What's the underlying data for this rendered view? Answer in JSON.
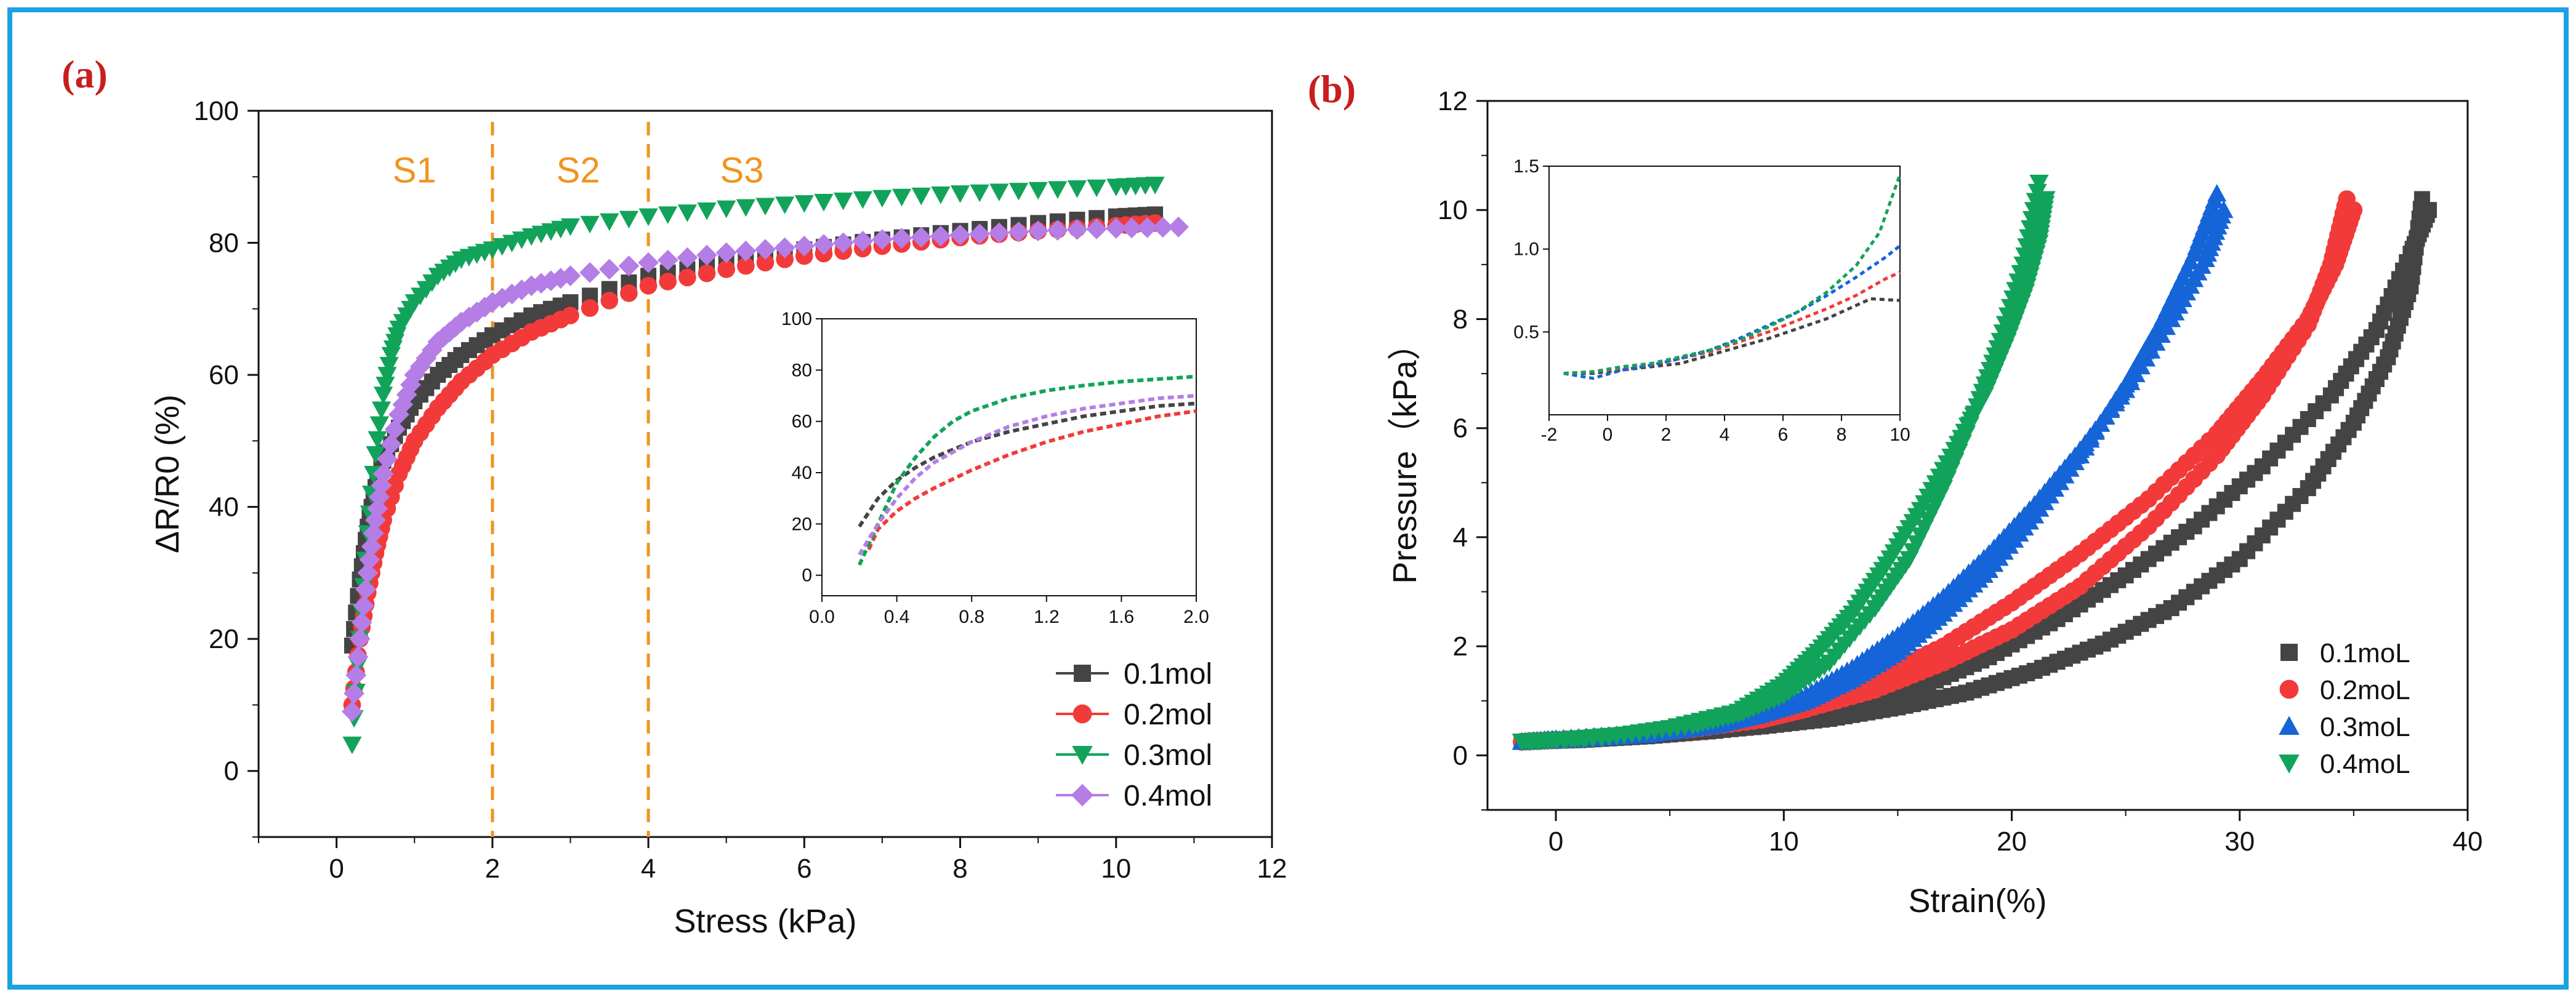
{
  "panel_labels": {
    "a": "(a)",
    "b": "(b)"
  },
  "colors": {
    "frame": "#1aa3dd",
    "label": "#c81e1e",
    "s1": "#444444",
    "s2": "#f23a3a",
    "s3": "#12a35a",
    "s4": "#b57de6",
    "b_s3": "#1565d8",
    "region": "#f0941e"
  },
  "chart_data": [
    {
      "type": "scatter",
      "panel": "a",
      "title": "",
      "xlabel": "Stress (kPa)",
      "ylabel": "ΔR/R0 (%)",
      "xlim": [
        -1,
        12
      ],
      "ylim": [
        -10,
        100
      ],
      "xticks": [
        0,
        2,
        4,
        6,
        8,
        10,
        12
      ],
      "yticks": [
        0,
        20,
        40,
        60,
        80,
        100
      ],
      "region_lines_x": [
        2,
        4
      ],
      "region_labels": [
        {
          "text": "S1",
          "x": 1.0,
          "y": 91
        },
        {
          "text": "S2",
          "x": 3.1,
          "y": 91
        },
        {
          "text": "S3",
          "x": 5.2,
          "y": 91
        }
      ],
      "legend": [
        "0.1mol",
        "0.2mol",
        "0.3mol",
        "0.4mol"
      ],
      "series": [
        {
          "name": "0.1mol",
          "marker": "square",
          "x": [
            0.2,
            0.3,
            0.4,
            0.5,
            0.6,
            0.8,
            1.0,
            1.3,
            1.6,
            2.0,
            2.5,
            3.0,
            4.0,
            5.0,
            6.0,
            7.0,
            8.0,
            9.0,
            10.0,
            10.5
          ],
          "y": [
            19,
            29,
            37,
            43,
            47,
            52,
            56,
            60,
            63,
            66,
            69,
            71,
            75,
            77,
            79,
            80.5,
            81.8,
            83,
            84,
            84.3
          ]
        },
        {
          "name": "0.2mol",
          "marker": "circle",
          "x": [
            0.2,
            0.3,
            0.4,
            0.5,
            0.6,
            0.8,
            1.0,
            1.3,
            1.6,
            2.0,
            2.5,
            3.0,
            4.0,
            5.0,
            6.0,
            7.0,
            8.0,
            9.0,
            10.0,
            10.5
          ],
          "y": [
            10,
            20,
            27,
            33,
            38,
            45,
            50,
            55,
            59,
            63,
            66.5,
            69,
            73.5,
            76,
            78,
            79.5,
            80.8,
            81.8,
            82.6,
            83
          ]
        },
        {
          "name": "0.3mol",
          "marker": "triangle-down",
          "x": [
            0.2,
            0.3,
            0.4,
            0.5,
            0.6,
            0.7,
            0.8,
            1.0,
            1.3,
            1.6,
            2.0,
            2.5,
            3.0,
            4.0,
            5.0,
            6.0,
            7.0,
            8.0,
            9.0,
            10.0,
            10.5
          ],
          "y": [
            4,
            20,
            36,
            48,
            57,
            63,
            67,
            71,
            75,
            77.5,
            79,
            81,
            82.5,
            84,
            85.2,
            86,
            86.8,
            87.5,
            88,
            88.5,
            88.8
          ]
        },
        {
          "name": "0.4mol",
          "marker": "diamond",
          "x": [
            0.2,
            0.3,
            0.4,
            0.5,
            0.6,
            0.8,
            1.0,
            1.3,
            1.6,
            2.0,
            2.5,
            3.0,
            4.0,
            5.0,
            6.0,
            7.0,
            8.0,
            9.0,
            10.0,
            10.8
          ],
          "y": [
            9,
            20,
            30,
            38,
            45,
            54,
            60,
            65,
            68,
            71,
            73.5,
            75,
            77,
            78.5,
            79.5,
            80.5,
            81.2,
            81.8,
            82.2,
            82.4
          ]
        }
      ]
    },
    {
      "type": "line",
      "panel": "a-inset",
      "xlim": [
        0.0,
        2.0
      ],
      "ylim": [
        -8,
        100
      ],
      "xticks": [
        "0.0",
        "0.4",
        "0.8",
        "1.2",
        "1.6",
        "2.0"
      ],
      "yticks": [
        "0",
        "20",
        "40",
        "60",
        "80",
        "100"
      ],
      "series": [
        {
          "name": "0.1mol",
          "x": [
            0.2,
            0.3,
            0.4,
            0.5,
            0.6,
            0.8,
            1.0,
            1.2,
            1.4,
            1.6,
            1.8,
            2.0
          ],
          "y": [
            19,
            30,
            37,
            42,
            46,
            52,
            56,
            59,
            62,
            64,
            66,
            67
          ]
        },
        {
          "name": "0.2mol",
          "x": [
            0.25,
            0.3,
            0.4,
            0.5,
            0.6,
            0.8,
            1.0,
            1.2,
            1.4,
            1.6,
            1.8,
            2.0
          ],
          "y": [
            10,
            18,
            25,
            30,
            34,
            41,
            47,
            52,
            56,
            59,
            62,
            64
          ]
        },
        {
          "name": "0.3mol",
          "x": [
            0.2,
            0.3,
            0.4,
            0.5,
            0.6,
            0.7,
            0.8,
            1.0,
            1.2,
            1.4,
            1.6,
            1.8,
            2.0
          ],
          "y": [
            4,
            20,
            36,
            46,
            54,
            60,
            64,
            69,
            72,
            74,
            75.5,
            76.5,
            77.5
          ]
        },
        {
          "name": "0.4mol",
          "x": [
            0.2,
            0.3,
            0.4,
            0.5,
            0.6,
            0.8,
            1.0,
            1.2,
            1.4,
            1.6,
            1.8,
            2.0
          ],
          "y": [
            8,
            20,
            30,
            38,
            44,
            52,
            58,
            62,
            65,
            67,
            69,
            70
          ]
        }
      ]
    },
    {
      "type": "scatter",
      "panel": "b",
      "title": "",
      "xlabel": "Strain(%)",
      "ylabel": "Pressure（kPa）",
      "xlim": [
        -3,
        40
      ],
      "ylim": [
        -1,
        12
      ],
      "xticks": [
        0,
        10,
        20,
        30,
        40
      ],
      "yticks": [
        0,
        2,
        4,
        6,
        8,
        10,
        12
      ],
      "legend": [
        "0.1moL",
        "0.2moL",
        "0.3moL",
        "0.4moL"
      ],
      "series": [
        {
          "name": "0.1moL",
          "marker": "square",
          "loading": {
            "x": [
              -1.5,
              0,
              3,
              6,
              9,
              12,
              15,
              18,
              21,
              24,
              27,
              30,
              33,
              35,
              36.5,
              37.5,
              38
            ],
            "y": [
              0.25,
              0.27,
              0.33,
              0.42,
              0.53,
              0.67,
              0.88,
              1.15,
              1.55,
              2.05,
              2.7,
              3.6,
              4.9,
              6.1,
              7.3,
              8.6,
              10.2
            ]
          },
          "unloading": {
            "x": [
              38.3,
              37.5,
              36,
              34,
              31,
              28,
              25,
              22,
              19,
              16,
              13,
              10,
              7,
              4,
              1,
              -1.5
            ],
            "y": [
              10.0,
              9.2,
              7.8,
              6.6,
              5.3,
              4.2,
              3.3,
              2.5,
              1.8,
              1.25,
              0.85,
              0.6,
              0.45,
              0.35,
              0.28,
              0.25
            ]
          }
        },
        {
          "name": "0.2moL",
          "marker": "circle",
          "loading": {
            "x": [
              -1.5,
              0,
              3,
              6,
              9,
              11,
              14,
              17,
              20,
              23,
              26,
              29,
              31,
              33,
              34,
              34.7
            ],
            "y": [
              0.25,
              0.28,
              0.36,
              0.48,
              0.65,
              0.85,
              1.2,
              1.7,
              2.3,
              3.1,
              4.2,
              5.5,
              6.6,
              7.9,
              9.0,
              10.2
            ]
          },
          "unloading": {
            "x": [
              35,
              34.2,
              33,
              31,
              29,
              26,
              23,
              20,
              17,
              14,
              11,
              8,
              5,
              2,
              -1.5
            ],
            "y": [
              10.0,
              9.0,
              8.0,
              6.9,
              5.9,
              4.7,
              3.7,
              2.8,
              2.0,
              1.4,
              0.95,
              0.65,
              0.45,
              0.33,
              0.25
            ]
          }
        },
        {
          "name": "0.3moL",
          "marker": "triangle-up",
          "color_key": "b_s3",
          "loading": {
            "x": [
              -1.5,
              0,
              3,
              6,
              9,
              11,
              13,
              15,
              17,
              19,
              21,
              23,
              25,
              26.5,
              28,
              29
            ],
            "y": [
              0.25,
              0.3,
              0.38,
              0.52,
              0.75,
              1.0,
              1.4,
              1.9,
              2.6,
              3.4,
              4.4,
              5.5,
              6.8,
              7.9,
              9.2,
              10.3
            ]
          },
          "unloading": {
            "x": [
              29.3,
              28.5,
              27,
              25,
              23,
              21,
              19,
              17,
              15,
              13,
              11,
              9,
              7,
              4,
              1,
              -1.5
            ],
            "y": [
              10.0,
              9.1,
              8.0,
              6.7,
              5.6,
              4.6,
              3.7,
              2.9,
              2.2,
              1.6,
              1.1,
              0.75,
              0.55,
              0.38,
              0.3,
              0.25
            ]
          }
        },
        {
          "name": "0.4moL",
          "marker": "triangle-down",
          "loading": {
            "x": [
              -1.5,
              0,
              3,
              6,
              8,
              10,
              12,
              14,
              15.5,
              17,
              18.5,
              19.5,
              20.5,
              21.2
            ],
            "y": [
              0.25,
              0.28,
              0.38,
              0.55,
              0.75,
              1.1,
              1.7,
              2.7,
              3.6,
              4.9,
              6.4,
              7.6,
              9.0,
              10.5
            ]
          },
          "unloading": {
            "x": [
              21.5,
              21.2,
              20.6,
              19.8,
              18.8,
              17.5,
              16,
              14.5,
              13,
              11.5,
              10,
              8,
              5,
              2,
              -1.5
            ],
            "y": [
              10.2,
              9.4,
              8.5,
              7.6,
              6.6,
              5.6,
              4.5,
              3.5,
              2.6,
              1.9,
              1.3,
              0.8,
              0.5,
              0.32,
              0.25
            ]
          }
        }
      ]
    },
    {
      "type": "line",
      "panel": "b-inset",
      "xlim": [
        -2,
        10
      ],
      "ylim": [
        0,
        1.5
      ],
      "xticks": [
        "-2",
        "0",
        "2",
        "4",
        "6",
        "8",
        "10"
      ],
      "yticks": [
        "0.5",
        "1.0",
        "1.5"
      ],
      "series": [
        {
          "name": "0.1moL",
          "x": [
            -1.5,
            -0.5,
            0.5,
            1.5,
            2.5,
            3.5,
            4.5,
            5.5,
            6.5,
            7.5,
            8.5,
            9.0,
            10.0
          ],
          "y": [
            0.25,
            0.25,
            0.27,
            0.29,
            0.31,
            0.36,
            0.41,
            0.46,
            0.52,
            0.58,
            0.66,
            0.7,
            0.69
          ]
        },
        {
          "name": "0.2moL",
          "x": [
            -1.5,
            -0.5,
            0.5,
            1.5,
            2.5,
            3.5,
            4.5,
            5.5,
            6.5,
            7.5,
            8.5,
            9.5,
            10.0
          ],
          "y": [
            0.25,
            0.26,
            0.28,
            0.3,
            0.34,
            0.38,
            0.44,
            0.5,
            0.57,
            0.64,
            0.72,
            0.82,
            0.86
          ]
        },
        {
          "name": "0.3moL",
          "x": [
            -1.5,
            -0.5,
            0.5,
            1.5,
            2.5,
            3.5,
            4.5,
            5.5,
            6.5,
            7.5,
            8.5,
            9.5,
            10.0
          ],
          "y": [
            0.25,
            0.22,
            0.27,
            0.3,
            0.34,
            0.39,
            0.46,
            0.54,
            0.62,
            0.72,
            0.83,
            0.95,
            1.02
          ]
        },
        {
          "name": "0.4moL",
          "x": [
            -1.5,
            -0.5,
            0.5,
            1.5,
            2.5,
            3.5,
            4.5,
            5.5,
            6.5,
            7.5,
            8.5,
            9.3,
            9.8,
            10.0
          ],
          "y": [
            0.25,
            0.26,
            0.29,
            0.31,
            0.35,
            0.39,
            0.45,
            0.53,
            0.62,
            0.74,
            0.9,
            1.1,
            1.35,
            1.45
          ]
        }
      ]
    }
  ]
}
